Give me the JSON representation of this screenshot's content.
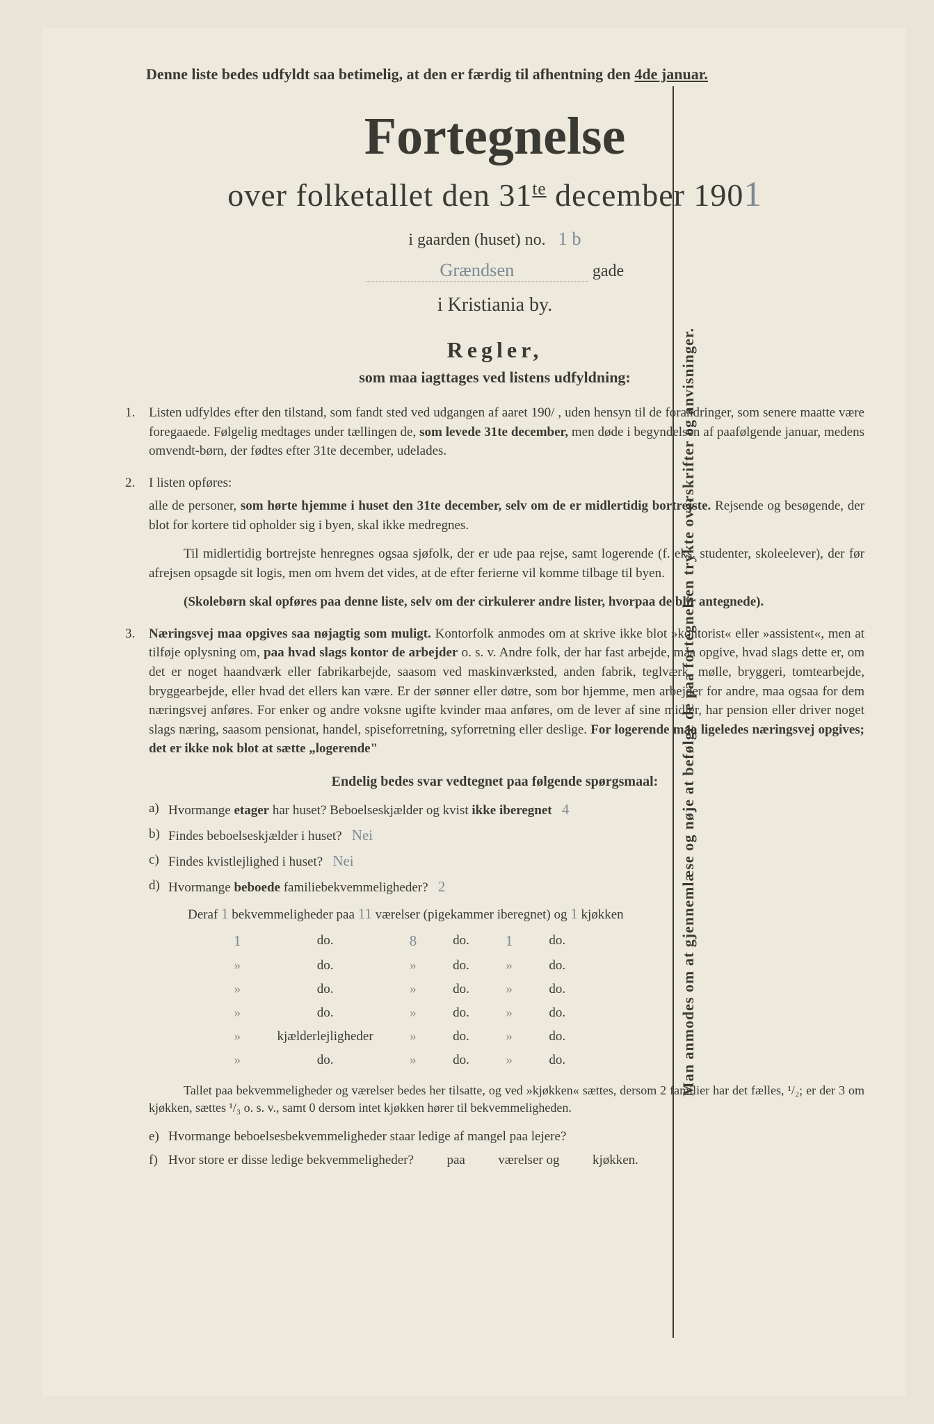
{
  "sideways_text": "Man anmodes om at gjennemlæse og nøje at befølge de paa fortegnelsen trykte overskrifter og anvisninger.",
  "top_note_pre": "Denne liste bedes udfyldt saa betimelig, at den er færdig til afhentning den ",
  "top_note_underlined": "4de januar.",
  "title": "Fortegnelse",
  "subtitle_pre": "over folketallet den 31",
  "subtitle_sup": "te",
  "subtitle_mid": " december 190",
  "subtitle_year_hand": "1",
  "gaard_label": "i gaarden (huset) no.",
  "gaard_value": "1 b",
  "gade_value": "Grændsen",
  "gade_label": "gade",
  "city": "i Kristiania by.",
  "regler_title": "Regler,",
  "regler_sub": "som maa iagttages ved listens udfyldning:",
  "rule1_a": "Listen udfyldes efter den tilstand, som fandt sted ved udgangen af aaret 190/ , uden hensyn til de forandringer, som senere maatte være foregaaede. Følgelig medtages under tællingen de, ",
  "rule1_b": "som levede 31te december,",
  "rule1_c": " men døde i begyndelsen af paafølgende januar, medens omvendt-børn, der fødtes efter 31te december, udelades.",
  "rule2_intro": "I listen opføres:",
  "rule2_a": "alle de personer, ",
  "rule2_b": "som hørte hjemme i huset den 31te december, selv om de er midlertidig bortrejste.",
  "rule2_c": " Rejsende og besøgende, der blot for kortere tid opholder sig i byen, skal ikke medregnes.",
  "rule2_p2": "Til midlertidig bortrejste henregnes ogsaa sjøfolk, der er ude paa rejse, samt logerende (f. eks. studenter, skoleelever), der før afrejsen opsagde sit logis, men om hvem det vides, at de efter ferierne vil komme tilbage til byen.",
  "rule2_p3": "(Skolebørn skal opføres paa denne liste, selv om der cirkulerer andre lister, hvorpaa de blir antegnede).",
  "rule3_a": "Næringsvej maa opgives saa nøjagtig som muligt.",
  "rule3_b": " Kontorfolk anmodes om at skrive ikke blot »kontorist« eller »assistent«, men at tilføje oplysning om, ",
  "rule3_c": "paa hvad slags kontor de arbejder",
  "rule3_d": " o. s. v. Andre folk, der har fast arbejde, maa opgive, hvad slags dette er, om det er noget haandværk eller fabrikarbejde, saasom ved maskinværksted, anden fabrik, teglværk, mølle, bryggeri, tomtearbejde, bryggearbejde, eller hvad det ellers kan være. Er der sønner eller døtre, som bor hjemme, men arbejder for andre, maa ogsaa for dem næringsvej anføres. For enker og andre voksne ugifte kvinder maa anføres, om de lever af sine midler, har pension eller driver noget slags næring, saasom pensionat, handel, spiseforretning, syforretning eller deslige. ",
  "rule3_e": "For logerende maa ligeledes næringsvej opgives; det er ikke nok blot at sætte „logerende\"",
  "questions_title": "Endelig bedes svar vedtegnet paa følgende spørgsmaal:",
  "qa_label": "a)",
  "qa_text_1": "Hvormange ",
  "qa_text_2": "etager",
  "qa_text_3": " har huset? Beboelseskjælder og kvist ",
  "qa_text_4": "ikke iberegnet",
  "qa_ans": "4",
  "qb_label": "b)",
  "qb_text": "Findes beboelseskjælder i huset?",
  "qb_ans": "Nei",
  "qc_label": "c)",
  "qc_text": "Findes kvistlejlighed i huset?",
  "qc_ans": "Nei",
  "qd_label": "d)",
  "qd_text_1": "Hvormange ",
  "qd_text_2": "beboede",
  "qd_text_3": " familiebekvemmeligheder?",
  "qd_ans": "2",
  "deraf_1": "Deraf ",
  "deraf_v1": "1",
  "deraf_2": " bekvemmeligheder paa ",
  "deraf_v2": "11",
  "deraf_3": " værelser (pigekammer iberegnet) og ",
  "deraf_v3": "1",
  "deraf_4": " kjøkken",
  "dotable": {
    "col_do": "do.",
    "rows": [
      {
        "c1": "1",
        "c2": "do.",
        "c3": "8",
        "c4": "do.",
        "c5": "1",
        "c6": "do."
      },
      {
        "c1": "",
        "c2": "do.",
        "c3": "",
        "c4": "do.",
        "c5": "",
        "c6": "do."
      },
      {
        "c1": "",
        "c2": "do.",
        "c3": "",
        "c4": "do.",
        "c5": "",
        "c6": "do."
      },
      {
        "c1": "",
        "c2": "do.",
        "c3": "",
        "c4": "do.",
        "c5": "",
        "c6": "do."
      },
      {
        "c1": "",
        "c2": "kjælderlejligheder",
        "c3": "",
        "c4": "do.",
        "c5": "",
        "c6": "do."
      },
      {
        "c1": "",
        "c2": "do.",
        "c3": "",
        "c4": "do.",
        "c5": "",
        "c6": "do."
      }
    ]
  },
  "footnote": "Tallet paa bekvemmeligheder og værelser bedes her tilsatte, og ved »kjøkken« sættes, dersom 2 familier har det fælles, ¹/₂; er der 3 om kjøkken, sættes ¹/₃ o. s. v., samt 0 dersom intet kjøkken hører til bekvemmeligheden.",
  "qe_label": "e)",
  "qe_text": "Hvormange beboelsesbekvemmeligheder staar ledige af mangel paa lejere?",
  "qf_label": "f)",
  "qf_text": "Hvor store er disse ledige bekvemmeligheder?",
  "qf_paa": "paa",
  "qf_vaer": "værelser og",
  "qf_kjok": "kjøkken."
}
